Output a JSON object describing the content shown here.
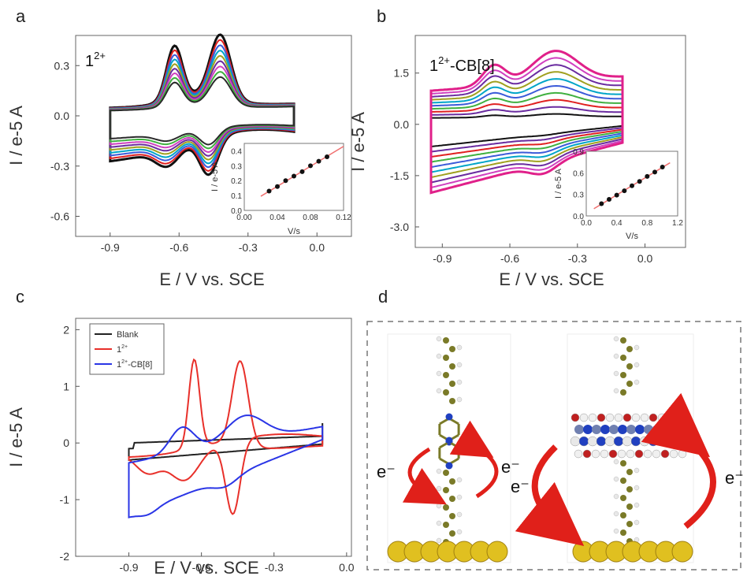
{
  "panels": {
    "a": {
      "letter": "a",
      "annotation_main": "1",
      "annotation_sup": "2+",
      "xlabel": "E / V vs. SCE",
      "ylabel": "I / e-5 A",
      "xticks": [
        "-0.9",
        "-0.6",
        "-0.3",
        "0.0"
      ],
      "yticks": [
        "0.3",
        "0.0",
        "-0.3",
        "-0.6"
      ],
      "inset": {
        "xlabel": "V/s",
        "ylabel": "I / e-5 A",
        "xticks": [
          "0.00",
          "0.04",
          "0.08",
          "0.12"
        ],
        "yticks": [
          "0.4",
          "0.3",
          "0.2",
          "0.1",
          "0.0"
        ]
      }
    },
    "b": {
      "letter": "b",
      "annotation_main": "1",
      "annotation_sup": "2+",
      "annotation_tail": "-CB[8]",
      "xlabel": "E / V vs. SCE",
      "ylabel": "I / e-5 A",
      "xticks": [
        "-0.9",
        "-0.6",
        "-0.3",
        "0.0"
      ],
      "yticks": [
        "1.5",
        "0.0",
        "-1.5",
        "-3.0"
      ],
      "inset": {
        "xlabel": "V/s",
        "ylabel": "I / e-5 A",
        "xticks": [
          "0.0",
          "0.4",
          "0.8",
          "1.2"
        ],
        "yticks": [
          "0.9",
          "0.6",
          "0.3",
          "0.0"
        ]
      }
    },
    "c": {
      "letter": "c",
      "xlabel": "E / V vs. SCE",
      "ylabel": "I / e-5 A",
      "xticks": [
        "-0.9",
        "-0.6",
        "-0.3",
        "0.0"
      ],
      "yticks": [
        "2",
        "1",
        "0",
        "-1",
        "-2"
      ],
      "legend": [
        {
          "name": "Blank",
          "sup": "",
          "tail": "",
          "color": "#222222"
        },
        {
          "name": "1",
          "sup": "2+",
          "tail": "",
          "color": "#e8302a"
        },
        {
          "name": "1",
          "sup": "2+",
          "tail": "-CB[8]",
          "color": "#2a35e6"
        }
      ]
    },
    "d": {
      "letter": "d",
      "electron_labels": [
        "e⁻",
        "e⁻",
        "e⁻",
        "e⁻"
      ]
    }
  },
  "chart_data": [
    {
      "panel": "a",
      "type": "line",
      "xlabel": "E / V vs. SCE",
      "ylabel": "I / e-5 A",
      "xlim": [
        -1.05,
        0.15
      ],
      "ylim": [
        -0.72,
        0.48
      ],
      "description_peaks_V": [
        -0.62,
        -0.42
      ],
      "series_scales": [
        1.0,
        0.93,
        0.86,
        0.79,
        0.72,
        0.65,
        0.58,
        0.51,
        0.44
      ],
      "series_colors": [
        "#111111",
        "#e02020",
        "#3b5bd9",
        "#00a5c8",
        "#a0a020",
        "#6a2ca0",
        "#d040c0",
        "#40b040",
        "#2a2a2a"
      ],
      "peak_current_max": 0.44,
      "inset": {
        "type": "scatter",
        "x": [
          0.03,
          0.04,
          0.05,
          0.06,
          0.07,
          0.08,
          0.09,
          0.1
        ],
        "y": [
          0.13,
          0.16,
          0.2,
          0.23,
          0.26,
          0.3,
          0.33,
          0.36
        ],
        "fit_x": [
          0.02,
          0.12
        ],
        "fit_y": [
          0.095,
          0.43
        ],
        "xlim": [
          0.0,
          0.12
        ],
        "ylim": [
          0.0,
          0.45
        ]
      }
    },
    {
      "panel": "b",
      "type": "line",
      "xlabel": "E / V vs. SCE",
      "ylabel": "I / e-5 A",
      "xlim": [
        -1.02,
        0.18
      ],
      "ylim": [
        -3.6,
        2.6
      ],
      "series_scales": [
        1.0,
        0.9,
        0.8,
        0.7,
        0.6,
        0.5,
        0.4,
        0.3,
        0.2,
        0.1
      ],
      "series_colors": [
        "#e0208a",
        "#d040c0",
        "#6a2ca0",
        "#a0a020",
        "#00a5c8",
        "#3b5bd9",
        "#40b040",
        "#e02020",
        "#6a2ca0",
        "#111111"
      ],
      "inset": {
        "type": "scatter",
        "x": [
          0.2,
          0.3,
          0.4,
          0.5,
          0.6,
          0.7,
          0.8,
          0.9,
          1.0
        ],
        "y": [
          0.17,
          0.23,
          0.29,
          0.35,
          0.42,
          0.48,
          0.55,
          0.61,
          0.68
        ],
        "fit_x": [
          0.1,
          1.1
        ],
        "fit_y": [
          0.1,
          0.74
        ],
        "xlim": [
          0.0,
          1.2
        ],
        "ylim": [
          0.0,
          0.9
        ]
      }
    },
    {
      "panel": "c",
      "type": "line",
      "xlabel": "E / V vs. SCE",
      "ylabel": "I / e-5 A",
      "xlim": [
        -1.12,
        0.02
      ],
      "ylim": [
        -2.0,
        2.2
      ],
      "series": [
        {
          "name": "Blank",
          "color": "#222222"
        },
        {
          "name": "1²⁺",
          "color": "#e8302a",
          "peaks_forward": [
            [
              -0.63,
              1.55
            ],
            [
              -0.44,
              1.65
            ]
          ],
          "peaks_reverse": [
            [
              -0.47,
              -1.5
            ],
            [
              -0.67,
              -0.65
            ]
          ]
        },
        {
          "name": "1²⁺-CB[8]",
          "color": "#2a35e6",
          "peaks_forward": [
            [
              -0.67,
              0.55
            ],
            [
              -0.42,
              1.05
            ]
          ],
          "peaks_reverse": [
            [
              -0.5,
              -0.6
            ],
            [
              -0.82,
              -1.3
            ]
          ]
        }
      ]
    }
  ]
}
